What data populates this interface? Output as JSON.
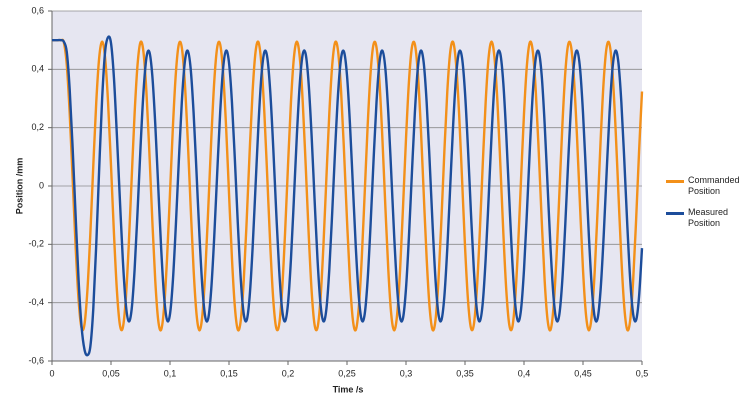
{
  "chart_data": {
    "type": "line",
    "x_label": "Time /s",
    "y_label": "Position /mm",
    "xlim": [
      0,
      0.5
    ],
    "ylim": [
      -0.6,
      0.6
    ],
    "xticks": [
      0,
      {
        "value": 0.05,
        "label": "0,05"
      },
      {
        "value": 0.1,
        "label": "0,1"
      },
      {
        "value": 0.15,
        "label": "0,15"
      },
      {
        "value": 0.2,
        "label": "0,2"
      },
      {
        "value": 0.25,
        "label": "0,25"
      },
      {
        "value": 0.3,
        "label": "0,3"
      },
      {
        "value": 0.35,
        "label": "0,35"
      },
      {
        "value": 0.4,
        "label": "0,4"
      },
      {
        "value": 0.45,
        "label": "0,45"
      },
      {
        "value": 0.5,
        "label": "0,5"
      }
    ],
    "yticks": [
      {
        "value": -0.6,
        "label": "-0,6"
      },
      {
        "value": -0.4,
        "label": "-0,4"
      },
      {
        "value": -0.2,
        "label": "-0,2"
      },
      0,
      {
        "value": 0.2,
        "label": "0,2"
      },
      {
        "value": 0.4,
        "label": "0,4"
      },
      {
        "value": 0.6,
        "label": "0,6"
      }
    ],
    "grid": true,
    "legend": "right",
    "plot_background": "#e6e6f1",
    "x": [
      0,
      0.0025,
      0.005,
      0.0075,
      0.01,
      0.0125,
      0.015,
      0.0175,
      0.02,
      0.0225,
      0.025,
      0.0275,
      0.03,
      0.0325,
      0.035,
      0.0375,
      0.04,
      0.0425,
      0.045,
      0.0475,
      0.05,
      0.0525,
      0.055,
      0.0575,
      0.06,
      0.0625,
      0.065,
      0.0675,
      0.07,
      0.0725,
      0.075,
      0.0775,
      0.08,
      0.0825,
      0.085,
      0.0875,
      0.09,
      0.0925,
      0.095,
      0.0975,
      0.1,
      0.1025,
      0.105,
      0.1075,
      0.11,
      0.1125,
      0.115,
      0.1175,
      0.12,
      0.1225,
      0.125,
      0.1275,
      0.13,
      0.1325,
      0.135,
      0.1375,
      0.14,
      0.1425,
      0.145,
      0.1475,
      0.15,
      0.1525,
      0.155,
      0.1575,
      0.16,
      0.1625,
      0.165,
      0.1675,
      0.17,
      0.1725,
      0.175,
      0.1775,
      0.18,
      0.1825,
      0.185,
      0.1875,
      0.19,
      0.1925,
      0.195,
      0.1975,
      0.2,
      0.2025,
      0.205,
      0.2075,
      0.21,
      0.2125,
      0.215,
      0.2175,
      0.22,
      0.2225,
      0.225,
      0.2275,
      0.23,
      0.2325,
      0.235,
      0.2375,
      0.24,
      0.2425,
      0.245,
      0.2475,
      0.25,
      0.2525,
      0.255,
      0.2575,
      0.26,
      0.2625,
      0.265,
      0.2675,
      0.27,
      0.2725,
      0.275,
      0.2775,
      0.28,
      0.2825,
      0.285,
      0.2875,
      0.29,
      0.2925,
      0.295,
      0.2975,
      0.3,
      0.3025,
      0.305,
      0.3075,
      0.31,
      0.3125,
      0.315,
      0.3175,
      0.32,
      0.3225,
      0.325,
      0.3275,
      0.33,
      0.3325,
      0.335,
      0.3375,
      0.34,
      0.3425,
      0.345,
      0.3475,
      0.35,
      0.3525,
      0.355,
      0.3575,
      0.36,
      0.3625,
      0.365,
      0.3675,
      0.37,
      0.3725,
      0.375,
      0.3775,
      0.38,
      0.3825,
      0.385,
      0.3875,
      0.39,
      0.3925,
      0.395,
      0.3975,
      0.4,
      0.4025,
      0.405,
      0.4075,
      0.41,
      0.4125,
      0.415,
      0.4175,
      0.42,
      0.4225,
      0.425,
      0.4275,
      0.43,
      0.4325,
      0.435,
      0.4375,
      0.44,
      0.4425,
      0.445,
      0.4475,
      0.45,
      0.4525,
      0.455,
      0.4575,
      0.46,
      0.4625,
      0.465,
      0.4675,
      0.47,
      0.4725,
      0.475,
      0.4775,
      0.48,
      0.4825,
      0.485,
      0.4875,
      0.49,
      0.4925,
      0.495,
      0.4975,
      0.5
    ],
    "series": [
      {
        "name": "Commanded Position",
        "color": "#f39019",
        "values": [
          0.5,
          0.5,
          0.5,
          0.5,
          0.493,
          0.416,
          0.248,
          0.024,
          -0.206,
          -0.389,
          -0.486,
          -0.475,
          -0.358,
          -0.162,
          0.07,
          0.287,
          0.44,
          0.495,
          0.44,
          0.287,
          0.07,
          -0.162,
          -0.358,
          -0.475,
          -0.486,
          -0.389,
          -0.206,
          0.024,
          0.248,
          0.416,
          0.493,
          0.46,
          0.324,
          0.117,
          -0.117,
          -0.324,
          -0.46,
          -0.493,
          -0.416,
          -0.248,
          -0.024,
          0.206,
          0.389,
          0.486,
          0.475,
          0.358,
          0.162,
          -0.07,
          -0.287,
          -0.44,
          -0.495,
          -0.44,
          -0.287,
          -0.07,
          0.162,
          0.358,
          0.475,
          0.486,
          0.389,
          0.206,
          -0.024,
          -0.248,
          -0.416,
          -0.493,
          -0.46,
          -0.324,
          -0.117,
          0.117,
          0.324,
          0.46,
          0.493,
          0.416,
          0.248,
          0.024,
          -0.206,
          -0.389,
          -0.486,
          -0.475,
          -0.358,
          -0.162,
          0.07,
          0.287,
          0.44,
          0.495,
          0.44,
          0.287,
          0.07,
          -0.162,
          -0.358,
          -0.475,
          -0.486,
          -0.389,
          -0.206,
          0.024,
          0.248,
          0.416,
          0.493,
          0.46,
          0.324,
          0.117,
          -0.117,
          -0.324,
          -0.46,
          -0.493,
          -0.416,
          -0.248,
          -0.024,
          0.206,
          0.389,
          0.486,
          0.475,
          0.358,
          0.162,
          -0.07,
          -0.287,
          -0.44,
          -0.495,
          -0.44,
          -0.287,
          -0.07,
          0.162,
          0.358,
          0.475,
          0.486,
          0.389,
          0.206,
          -0.024,
          -0.248,
          -0.416,
          -0.493,
          -0.46,
          -0.324,
          -0.117,
          0.117,
          0.324,
          0.46,
          0.493,
          0.416,
          0.248,
          0.024,
          -0.206,
          -0.389,
          -0.486,
          -0.475,
          -0.358,
          -0.162,
          0.07,
          0.287,
          0.44,
          0.495,
          0.44,
          0.287,
          0.07,
          -0.162,
          -0.358,
          -0.475,
          -0.486,
          -0.389,
          -0.206,
          0.024,
          0.248,
          0.416,
          0.493,
          0.46,
          0.324,
          0.117,
          -0.117,
          -0.324,
          -0.46,
          -0.493,
          -0.416,
          -0.248,
          -0.024,
          0.206,
          0.389,
          0.486,
          0.475,
          0.358,
          0.162,
          -0.07,
          -0.287,
          -0.44,
          -0.495,
          -0.44,
          -0.287,
          -0.07,
          0.162,
          0.358,
          0.475,
          0.486,
          0.389,
          0.206,
          -0.024,
          -0.248,
          -0.416,
          -0.493,
          -0.46,
          -0.324,
          -0.117,
          0.117,
          0.324
        ]
      },
      {
        "name": "Measured Position",
        "color": "#1c4d9b",
        "values": [
          0.5,
          0.5,
          0.5,
          0.5,
          0.495,
          0.46,
          0.33,
          0.13,
          -0.1,
          -0.32,
          -0.48,
          -0.56,
          -0.58,
          -0.55,
          -0.42,
          -0.2,
          0.06,
          0.3,
          0.46,
          0.51,
          0.49,
          0.37,
          0.173,
          -0.044,
          -0.251,
          -0.403,
          -0.464,
          -0.423,
          -0.287,
          -0.088,
          0.131,
          0.321,
          0.439,
          0.46,
          0.379,
          0.213,
          0,
          -0.213,
          -0.379,
          -0.46,
          -0.439,
          -0.321,
          -0.131,
          0.088,
          0.287,
          0.423,
          0.464,
          0.403,
          0.251,
          0.044,
          -0.173,
          -0.351,
          -0.452,
          -0.452,
          -0.351,
          -0.173,
          0.044,
          0.251,
          0.403,
          0.464,
          0.423,
          0.287,
          0.088,
          -0.131,
          -0.321,
          -0.439,
          -0.46,
          -0.379,
          -0.213,
          0,
          0.213,
          0.379,
          0.46,
          0.439,
          0.321,
          0.131,
          -0.088,
          -0.287,
          -0.423,
          -0.464,
          -0.403,
          -0.251,
          -0.044,
          0.173,
          0.351,
          0.452,
          0.452,
          0.351,
          0.173,
          -0.044,
          -0.251,
          -0.403,
          -0.464,
          -0.423,
          -0.287,
          -0.088,
          0.131,
          0.321,
          0.439,
          0.46,
          0.379,
          0.213,
          0,
          -0.213,
          -0.379,
          -0.46,
          -0.439,
          -0.321,
          -0.131,
          0.088,
          0.287,
          0.423,
          0.464,
          0.403,
          0.251,
          0.044,
          -0.173,
          -0.351,
          -0.452,
          -0.452,
          -0.351,
          -0.173,
          0.044,
          0.251,
          0.403,
          0.464,
          0.423,
          0.287,
          0.088,
          -0.131,
          -0.321,
          -0.439,
          -0.46,
          -0.379,
          -0.213,
          0,
          0.213,
          0.379,
          0.46,
          0.439,
          0.321,
          0.131,
          -0.088,
          -0.287,
          -0.423,
          -0.464,
          -0.403,
          -0.251,
          -0.044,
          0.173,
          0.351,
          0.452,
          0.452,
          0.351,
          0.173,
          -0.044,
          -0.251,
          -0.403,
          -0.464,
          -0.423,
          -0.287,
          -0.088,
          0.131,
          0.321,
          0.439,
          0.46,
          0.379,
          0.213,
          0,
          -0.213,
          -0.379,
          -0.46,
          -0.439,
          -0.321,
          -0.131,
          0.088,
          0.287,
          0.423,
          0.464,
          0.403,
          0.251,
          0.044,
          -0.173,
          -0.351,
          -0.452,
          -0.452,
          -0.351,
          -0.173,
          0.044,
          0.251,
          0.403,
          0.464,
          0.423,
          0.287,
          0.088,
          -0.131,
          -0.321,
          -0.439,
          -0.46,
          -0.379,
          -0.213
        ]
      }
    ]
  }
}
